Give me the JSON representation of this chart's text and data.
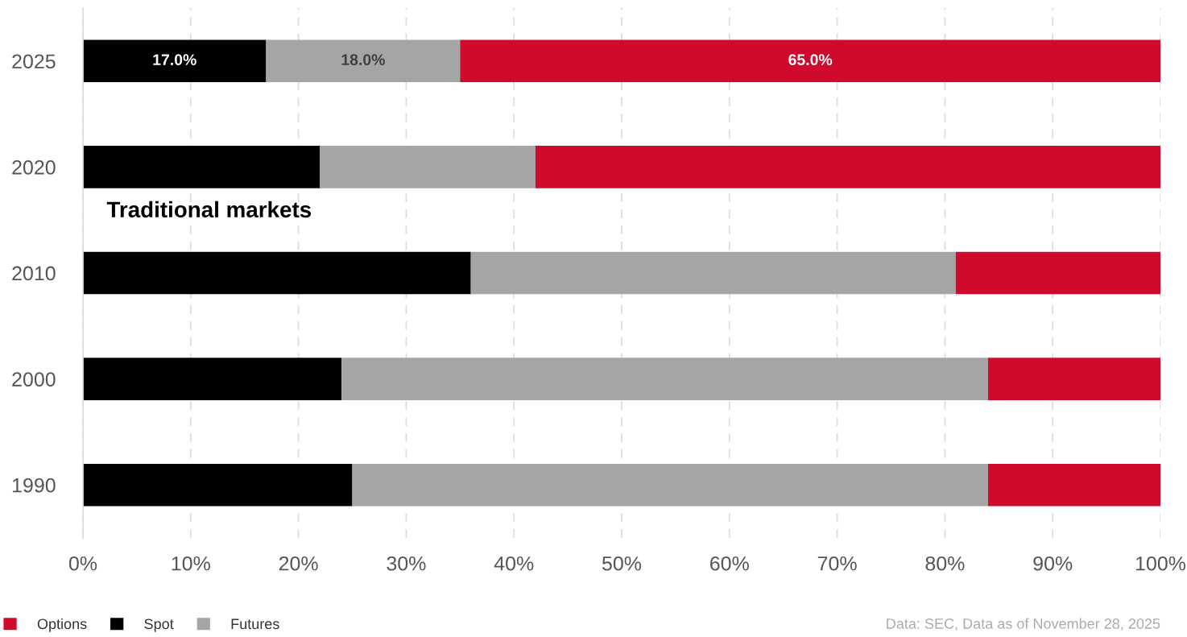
{
  "chart_data": {
    "type": "bar",
    "orientation": "horizontal",
    "stacked": true,
    "categories": [
      "2025",
      "2020",
      "2010",
      "2000",
      "1990"
    ],
    "series": [
      {
        "name": "Spot",
        "color": "#000000",
        "values": [
          17,
          22,
          36,
          24,
          25
        ],
        "value_labels": [
          "17.0%",
          null,
          null,
          null,
          null
        ]
      },
      {
        "name": "Futures",
        "color": "#a5a5a5",
        "values": [
          18,
          20,
          45,
          60,
          59
        ],
        "value_labels": [
          "18.0%",
          null,
          null,
          null,
          null
        ]
      },
      {
        "name": "Options",
        "color": "#cf0a2c",
        "values": [
          65,
          58,
          19,
          16,
          16
        ],
        "value_labels": [
          "65.0%",
          null,
          null,
          null,
          null
        ]
      }
    ],
    "xlim": [
      0,
      100
    ],
    "xticks": [
      {
        "value": 0,
        "label": "0%"
      },
      {
        "value": 10,
        "label": "10%"
      },
      {
        "value": 20,
        "label": "20%"
      },
      {
        "value": 30,
        "label": "30%"
      },
      {
        "value": 40,
        "label": "40%"
      },
      {
        "value": 50,
        "label": "50%"
      },
      {
        "value": 60,
        "label": "60%"
      },
      {
        "value": 70,
        "label": "70%"
      },
      {
        "value": 80,
        "label": "80%"
      },
      {
        "value": 90,
        "label": "90%"
      },
      {
        "value": 100,
        "label": "100%"
      }
    ],
    "grid": "x",
    "legend": "bottom left",
    "annotations": [
      "Traditional markets",
      "Data: SEC, Data as of November 28, 2025"
    ]
  }
}
